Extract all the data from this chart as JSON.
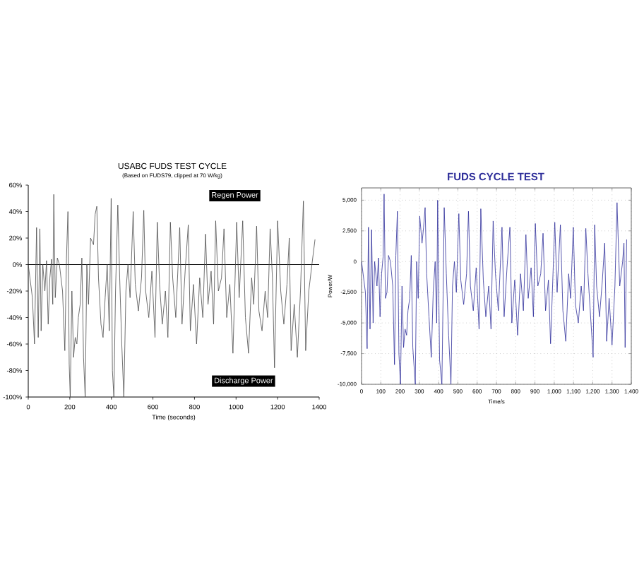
{
  "chart_data": [
    {
      "type": "line",
      "title": "USABC FUDS TEST CYCLE",
      "subtitle": "(Based on FUDS79, clipped at 70 W/kg)",
      "xlabel": "Time (seconds)",
      "annotations": [
        "Regen Power",
        "Discharge Power"
      ],
      "series": [
        {
          "color": "#4d4d4d",
          "x": [
            0,
            20,
            30,
            40,
            48,
            56,
            62,
            70,
            80,
            88,
            96,
            104,
            112,
            118,
            123,
            130,
            140,
            150,
            165,
            176,
            184,
            191,
            197,
            202,
            210,
            218,
            226,
            234,
            241,
            250,
            258,
            266,
            274,
            282,
            290,
            300,
            314,
            322,
            330,
            338,
            350,
            360,
            370,
            380,
            390,
            399,
            405,
            412,
            420,
            431,
            440,
            450,
            460,
            470,
            480,
            490,
            505,
            515,
            530,
            545,
            556,
            565,
            580,
            595,
            610,
            621,
            632,
            645,
            660,
            672,
            684,
            695,
            710,
            729,
            740,
            755,
            770,
            780,
            795,
            810,
            825,
            840,
            853,
            865,
            880,
            892,
            902,
            915,
            930,
            942,
            955,
            970,
            985,
            1003,
            1015,
            1032,
            1045,
            1060,
            1075,
            1085,
            1099,
            1110,
            1125,
            1140,
            1152,
            1164,
            1175,
            1185,
            1200,
            1215,
            1230,
            1245,
            1256,
            1265,
            1280,
            1295,
            1310,
            1324,
            1335,
            1350,
            1365,
            1380
          ],
          "values": [
            0,
            -25,
            -60,
            28,
            -55,
            27,
            -50,
            0,
            -20,
            3,
            -45,
            -10,
            4,
            -30,
            53,
            -25,
            5,
            0,
            -20,
            -65,
            5,
            40,
            -75,
            -100,
            -20,
            -70,
            -55,
            -60,
            -40,
            -30,
            5,
            -70,
            -100,
            0,
            -30,
            20,
            15,
            38,
            44,
            -10,
            -45,
            -55,
            -25,
            0,
            -50,
            50,
            -80,
            -100,
            -20,
            45,
            -10,
            -60,
            -100,
            -20,
            0,
            -25,
            40,
            -15,
            -35,
            -10,
            41,
            -20,
            -40,
            -5,
            -55,
            32,
            -15,
            -45,
            -20,
            -55,
            32,
            -10,
            -40,
            28,
            -45,
            -5,
            30,
            -50,
            -15,
            -60,
            -10,
            -40,
            23,
            -30,
            -5,
            -45,
            33,
            -20,
            -10,
            27,
            -40,
            -15,
            -67,
            32,
            -25,
            33,
            -40,
            -67,
            -10,
            -30,
            29,
            -35,
            -50,
            -20,
            -40,
            27,
            -10,
            -78,
            33,
            -20,
            -45,
            -15,
            20,
            -65,
            -30,
            -70,
            -20,
            48,
            -65,
            -20,
            0,
            19
          ]
        }
      ],
      "xlim": [
        0,
        1400
      ],
      "xticks": [
        0,
        200,
        400,
        600,
        800,
        1000,
        1200,
        1400
      ],
      "ylim": [
        -100,
        60
      ],
      "yticks": [
        {
          "value": -100,
          "label": "-100%"
        },
        {
          "value": -80,
          "label": "-80%"
        },
        {
          "value": -60,
          "label": "-60%"
        },
        {
          "value": -40,
          "label": "-40%"
        },
        {
          "value": -20,
          "label": "-20%"
        },
        {
          "value": 0,
          "label": "0%"
        },
        {
          "value": 20,
          "label": "20%"
        },
        {
          "value": 40,
          "label": "40%"
        },
        {
          "value": 60,
          "label": "60%"
        }
      ],
      "ref_lines": [
        {
          "axis": "y",
          "value": 0,
          "color": "#000000"
        }
      ],
      "marker": "none",
      "line_style": "solid"
    },
    {
      "type": "line",
      "title": "FUDS CYCLE TEST",
      "xlabel": "Time/s",
      "ylabel": "Power/W",
      "series": [
        {
          "color": "#2e2e9a",
          "x": [
            0,
            20,
            29,
            36,
            44,
            52,
            60,
            68,
            80,
            88,
            96,
            104,
            112,
            117,
            124,
            132,
            140,
            150,
            162,
            171,
            178,
            186,
            194,
            202,
            210,
            218,
            226,
            234,
            241,
            250,
            258,
            266,
            279,
            286,
            294,
            302,
            314,
            322,
            330,
            338,
            350,
            362,
            372,
            382,
            390,
            395,
            405,
            417,
            424,
            429,
            440,
            452,
            464,
            472,
            482,
            492,
            505,
            515,
            530,
            545,
            555,
            565,
            580,
            595,
            610,
            619,
            632,
            645,
            660,
            672,
            683,
            695,
            710,
            729,
            740,
            755,
            770,
            780,
            795,
            810,
            825,
            840,
            853,
            865,
            880,
            892,
            902,
            915,
            930,
            942,
            955,
            970,
            981,
            1003,
            1015,
            1032,
            1045,
            1060,
            1075,
            1085,
            1099,
            1110,
            1125,
            1140,
            1152,
            1164,
            1175,
            1202,
            1210,
            1220,
            1235,
            1250,
            1262,
            1272,
            1285,
            1300,
            1315,
            1326,
            1340,
            1355,
            1362,
            1368,
            1376
          ],
          "values": [
            0,
            -2500,
            -7100,
            2800,
            -5500,
            2600,
            -5000,
            0,
            -2000,
            300,
            -4500,
            -1000,
            400,
            5500,
            -3000,
            -2500,
            500,
            0,
            -2000,
            -8400,
            500,
            4100,
            -7500,
            -10000,
            -2000,
            -7000,
            -5500,
            -6000,
            -4000,
            -3000,
            500,
            -7000,
            -10000,
            0,
            -3000,
            3700,
            1500,
            2800,
            4400,
            -1000,
            -4500,
            -7800,
            -2500,
            0,
            -5000,
            5000,
            -8000,
            -10000,
            -2000,
            4400,
            -1000,
            -6000,
            -10000,
            -2000,
            0,
            -2500,
            3900,
            -1500,
            -3500,
            -1000,
            4100,
            -2000,
            -4000,
            -500,
            -5500,
            4300,
            -1500,
            -4500,
            -2000,
            -5500,
            3300,
            -1000,
            -4000,
            2800,
            -4500,
            -500,
            2800,
            -5000,
            -1500,
            -6000,
            -1000,
            -4000,
            2200,
            -3000,
            -500,
            -4500,
            3100,
            -2000,
            -1000,
            2300,
            -4000,
            -1500,
            -6700,
            3200,
            -2500,
            3000,
            -4000,
            -6500,
            -1000,
            -3000,
            2800,
            -3500,
            -5000,
            -2000,
            -4000,
            2700,
            -1000,
            -7800,
            3000,
            -2000,
            -4500,
            -1500,
            1500,
            -6500,
            -3000,
            -6800,
            -2000,
            4800,
            -2000,
            0,
            1500,
            -7000,
            1800
          ]
        }
      ],
      "xlim": [
        0,
        1400
      ],
      "xticks": [
        0,
        100,
        200,
        300,
        400,
        500,
        600,
        700,
        800,
        900,
        {
          "value": 1000,
          "label": "1,000"
        },
        {
          "value": 1100,
          "label": "1,100"
        },
        {
          "value": 1200,
          "label": "1,200"
        },
        {
          "value": 1300,
          "label": "1,300"
        },
        {
          "value": 1400,
          "label": "1,400"
        }
      ],
      "ylim": [
        -10000,
        6000
      ],
      "yticks": [
        {
          "value": -10000,
          "label": "-10,000"
        },
        {
          "value": -7500,
          "label": "-7,500"
        },
        {
          "value": -5000,
          "label": "-5,000"
        },
        {
          "value": -2500,
          "label": "-2,500"
        },
        0,
        {
          "value": 2500,
          "label": "2,500"
        },
        {
          "value": 5000,
          "label": "5,000"
        }
      ],
      "grid": true,
      "marker": "none",
      "line_style": "solid"
    }
  ]
}
